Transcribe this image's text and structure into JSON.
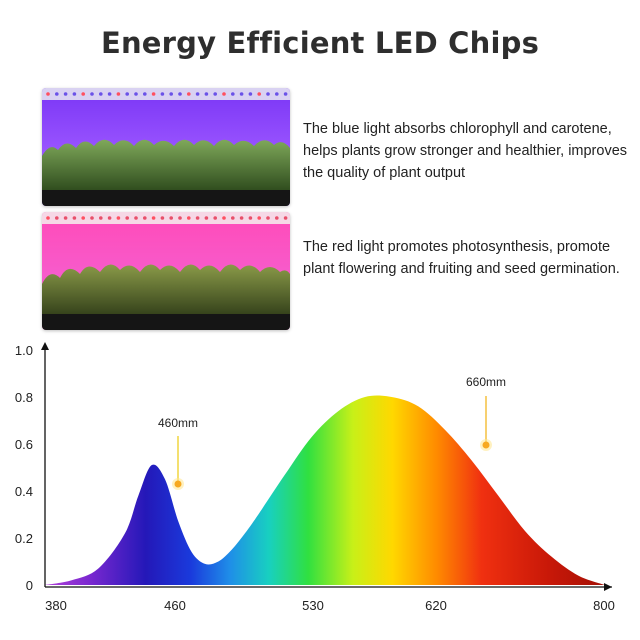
{
  "title": "Energy Efficient LED Chips",
  "blue_section": {
    "text": "The blue light absorbs chlorophyll and carotene, helps plants grow stronger and healthier, improves the quality of plant output"
  },
  "red_section": {
    "text": "The red light promotes photosynthesis, promote plant flowering and fruiting and seed germination."
  },
  "colors": {
    "title": "#2e2e2e",
    "blue_light": "#8a3cff",
    "red_light": "#ff3fb4"
  },
  "chart_data": {
    "type": "area",
    "title": "",
    "xlabel": "",
    "ylabel": "",
    "xlim": [
      380,
      800
    ],
    "ylim": [
      0,
      1.0
    ],
    "x_ticks": [
      "380",
      "460",
      "530",
      "620",
      "800"
    ],
    "y_ticks": [
      "0",
      "0.2",
      "0.4",
      "0.6",
      "0.8",
      "1.0"
    ],
    "grid": false,
    "series": [
      {
        "x": [
          380,
          400,
          420,
          440,
          450,
          460,
          470,
          480,
          490,
          500,
          510,
          520,
          530,
          540,
          560,
          580,
          600,
          620,
          640,
          660,
          680,
          700,
          720,
          740,
          760,
          780,
          800
        ],
        "values": [
          0.0,
          0.02,
          0.07,
          0.22,
          0.38,
          0.51,
          0.45,
          0.27,
          0.14,
          0.09,
          0.1,
          0.15,
          0.22,
          0.3,
          0.47,
          0.63,
          0.74,
          0.8,
          0.8,
          0.76,
          0.66,
          0.53,
          0.38,
          0.23,
          0.12,
          0.04,
          0.0
        ]
      }
    ],
    "annotations": [
      {
        "text": "460mm",
        "x": 460,
        "y": 0.46
      },
      {
        "text": "660mm",
        "x": 660,
        "y": 0.6
      }
    ]
  }
}
